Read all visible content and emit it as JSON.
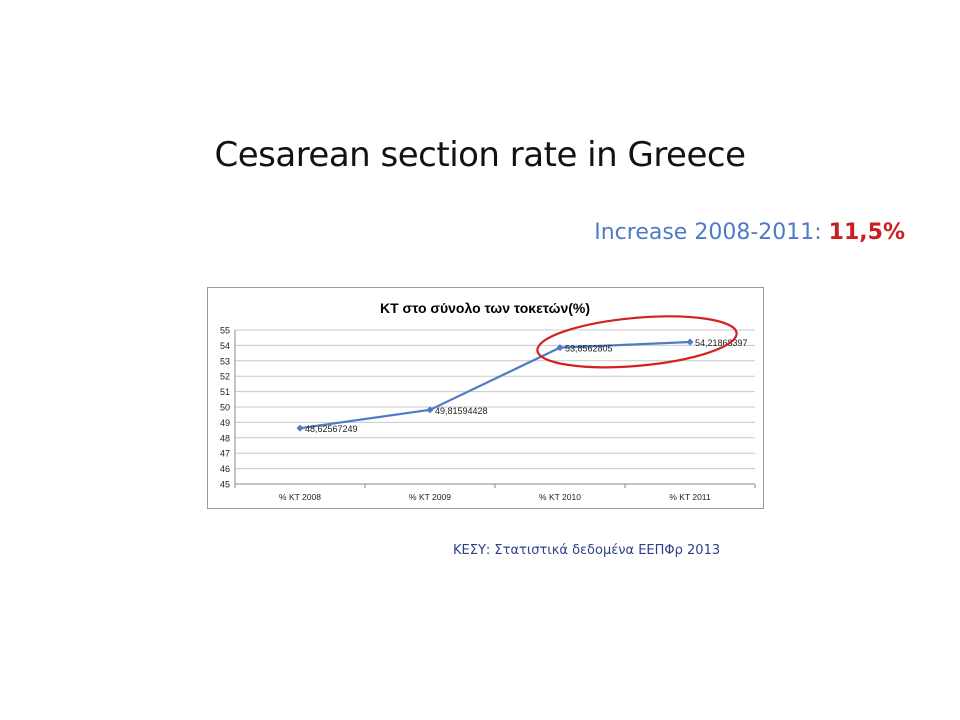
{
  "slide": {
    "title": "Cesarean section rate in Greece",
    "increase_label": "Increase 2008-2011:",
    "increase_value": "11,5%",
    "source": "ΚΕΣΥ: Στατιστικά δεδομένα ΕΕΠΦρ 2013"
  },
  "colors": {
    "line": "#4f7bc4",
    "highlight": "#d42020",
    "grid": "#c8c8c8"
  },
  "chart_data": {
    "type": "line",
    "title": "ΚΤ στο σύνολο των τοκετών(%)",
    "categories": [
      "% ΚΤ 2008",
      "% ΚΤ 2009",
      "% ΚΤ 2010",
      "% ΚΤ 2011"
    ],
    "series": [
      {
        "values": [
          48.62567249,
          49.81594428,
          53.8562805,
          54.21868397
        ],
        "labels": [
          "48,62567249",
          "49,81594428",
          "53,8562805",
          "54,21868397"
        ]
      }
    ],
    "ylim": [
      45,
      55
    ],
    "yticks": [
      45,
      46,
      47,
      48,
      49,
      50,
      51,
      52,
      53,
      54,
      55
    ],
    "grid": true,
    "legend": "none",
    "annotation": "ellipse around the 2010 and 2011 points"
  }
}
